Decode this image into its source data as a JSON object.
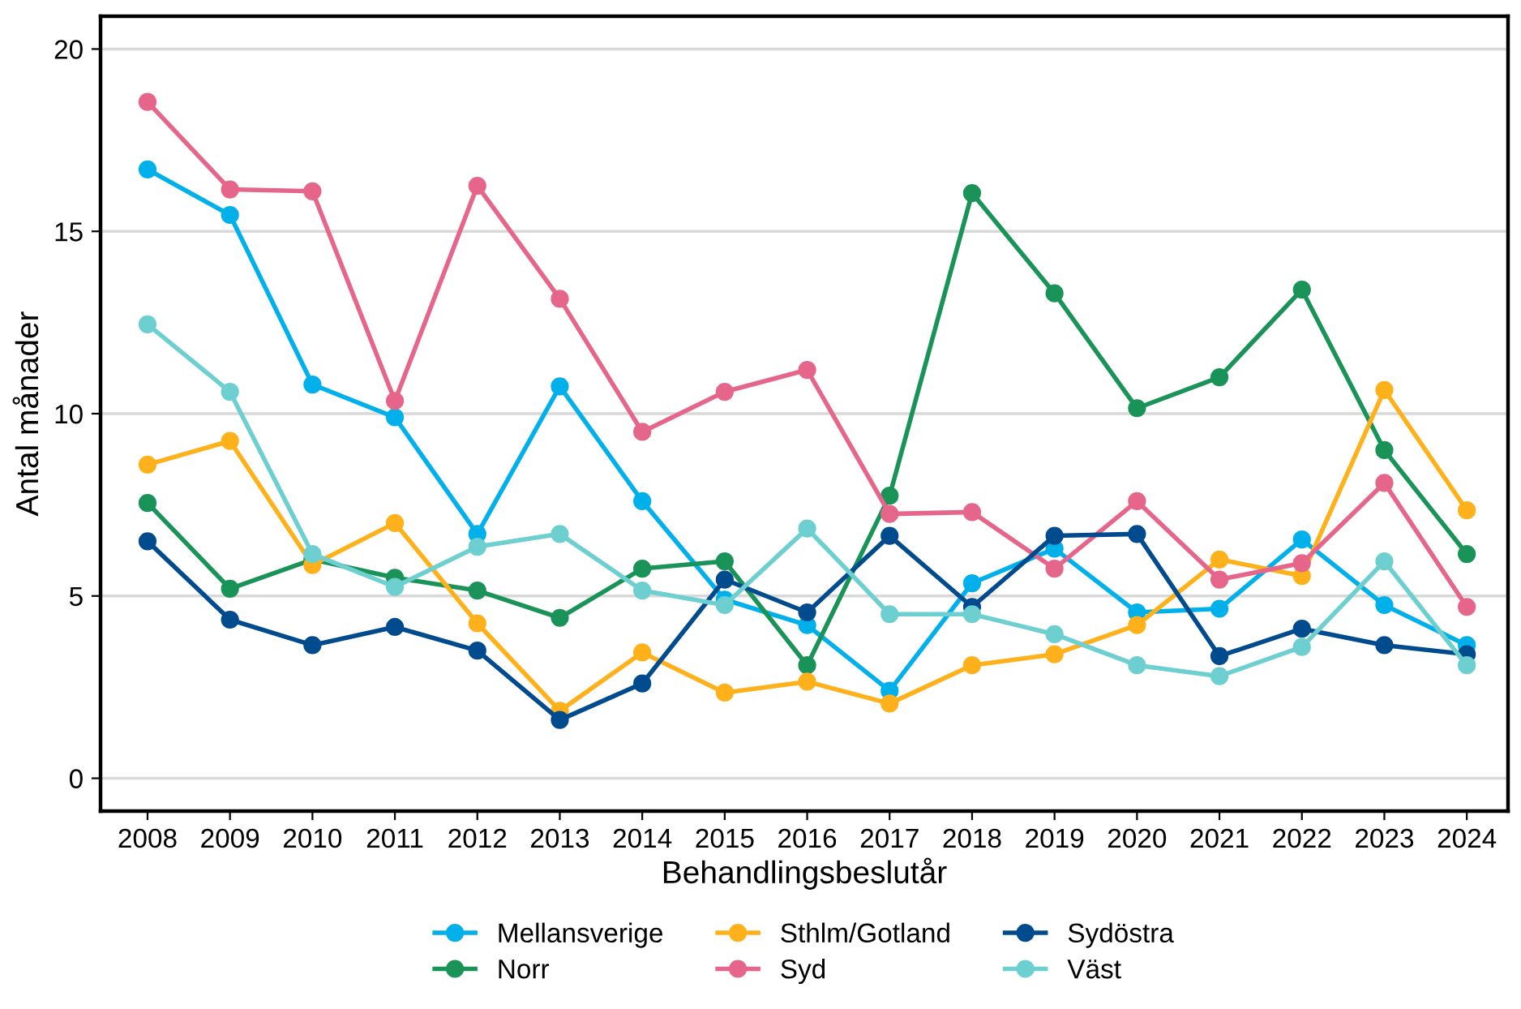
{
  "chart_data": {
    "type": "line",
    "xlabel": "Behandlingsbeslutår",
    "ylabel": "Antal månader",
    "x": [
      2008,
      2009,
      2010,
      2011,
      2012,
      2013,
      2014,
      2015,
      2016,
      2017,
      2018,
      2019,
      2020,
      2021,
      2022,
      2023,
      2024
    ],
    "xlim": [
      2007.43,
      2024.5
    ],
    "xticks": [
      2008,
      2009,
      2010,
      2011,
      2012,
      2013,
      2014,
      2015,
      2016,
      2017,
      2018,
      2019,
      2020,
      2021,
      2022,
      2023,
      2024
    ],
    "ylim": [
      -0.9,
      20.9
    ],
    "yticks": [
      0,
      5,
      10,
      15,
      20
    ],
    "grid": "y",
    "legend": "bottom",
    "marker": "circle",
    "line_style": "solid",
    "series": [
      {
        "name": "Mellansverige",
        "color": "#00b0ea",
        "values": [
          16.7,
          15.45,
          10.8,
          9.9,
          6.7,
          10.75,
          7.6,
          4.9,
          4.2,
          2.4,
          5.35,
          6.3,
          4.55,
          4.65,
          6.55,
          4.75,
          3.65
        ]
      },
      {
        "name": "Norr",
        "color": "#1a9358",
        "values": [
          7.55,
          5.2,
          6.0,
          5.5,
          5.15,
          4.4,
          5.75,
          5.95,
          3.1,
          7.75,
          16.05,
          13.3,
          10.15,
          11.0,
          13.4,
          9.0,
          6.15
        ]
      },
      {
        "name": "Sthlm/Gotland",
        "color": "#ffb11b",
        "values": [
          8.6,
          9.25,
          5.85,
          7.0,
          4.25,
          1.85,
          3.45,
          2.35,
          2.65,
          2.05,
          3.1,
          3.4,
          4.2,
          6.0,
          5.55,
          10.65,
          7.35
        ]
      },
      {
        "name": "Syd",
        "color": "#e5668a",
        "values": [
          18.55,
          16.15,
          16.1,
          10.35,
          16.25,
          13.15,
          9.5,
          10.6,
          11.2,
          7.25,
          7.3,
          5.75,
          7.6,
          5.45,
          5.9,
          8.1,
          4.7
        ]
      },
      {
        "name": "Sydöstra",
        "color": "#004b8d",
        "values": [
          6.5,
          4.35,
          3.65,
          4.15,
          3.5,
          1.6,
          2.6,
          5.45,
          4.55,
          6.65,
          4.7,
          6.65,
          6.7,
          3.35,
          4.1,
          3.65,
          3.4
        ]
      },
      {
        "name": "Väst",
        "color": "#6dcfcf",
        "values": [
          12.45,
          10.6,
          6.15,
          5.25,
          6.35,
          6.7,
          5.15,
          4.75,
          6.85,
          4.5,
          4.5,
          3.95,
          3.1,
          2.8,
          3.6,
          5.95,
          3.1
        ]
      }
    ]
  }
}
